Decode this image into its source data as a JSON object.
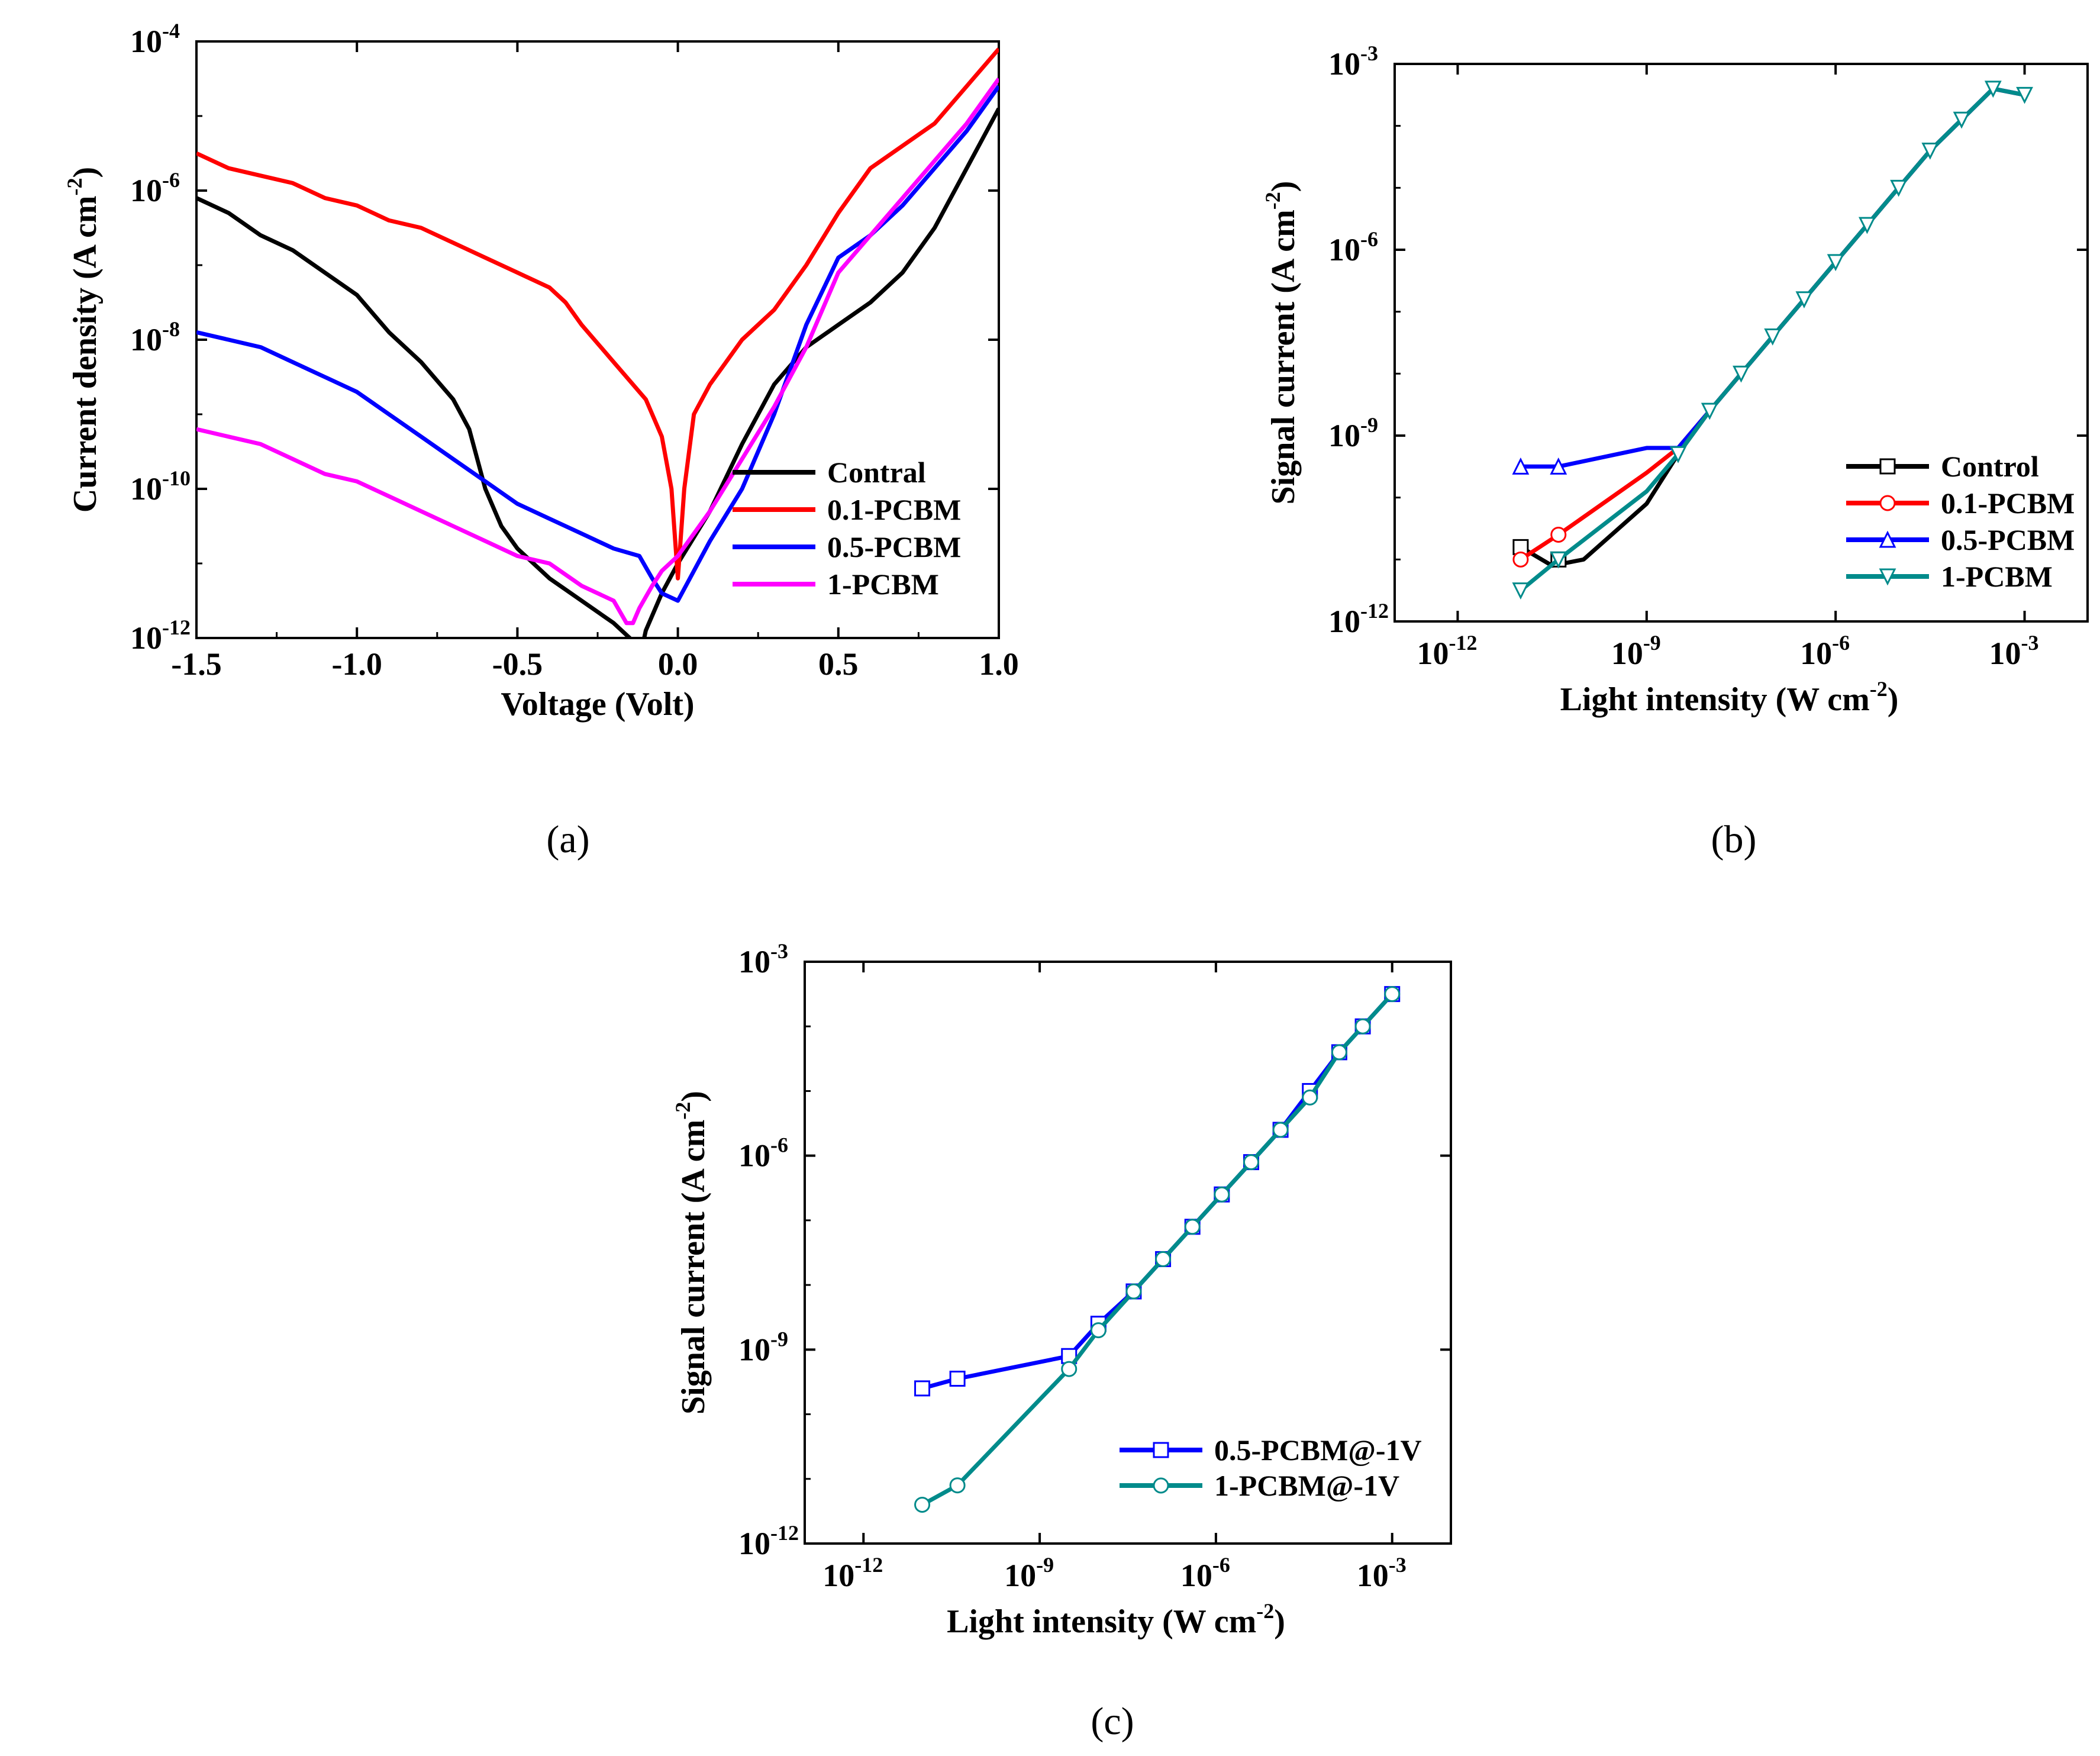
{
  "chart_data": [
    {
      "panel": "(a)",
      "panel_letter": "a",
      "type": "line",
      "xscale": "linear",
      "yscale": "log",
      "xlabel": "Voltage (Volt)",
      "ylabel": "Current density (A cm-2)",
      "ylabel_parts": {
        "text": "Current density (A cm",
        "sup": "-2",
        "close": ")"
      },
      "xlim": [
        -1.5,
        1.0
      ],
      "ylim_exp": [
        -12,
        -4
      ],
      "xticks": [
        -1.5,
        -1.0,
        -0.5,
        0.0,
        0.5,
        1.0
      ],
      "xtick_labels": [
        "-1.5",
        "-1.0",
        "-0.5",
        "0.0",
        "0.5",
        "1.0"
      ],
      "yticks_exp": [
        -12,
        -10,
        -8,
        -6,
        -4
      ],
      "ytick_labels": [
        "10",
        "10",
        "10",
        "10",
        "10"
      ],
      "ytick_exps": [
        "-12",
        "-10",
        "-8",
        "-6",
        "-4"
      ],
      "legend_position": "bottom-right",
      "series": [
        {
          "name": "Contral",
          "color": "#000000",
          "x": [
            -1.5,
            -1.4,
            -1.3,
            -1.2,
            -1.1,
            -1.0,
            -0.9,
            -0.8,
            -0.7,
            -0.65,
            -0.6,
            -0.55,
            -0.5,
            -0.4,
            -0.3,
            -0.2,
            -0.15,
            -0.12,
            -0.1,
            -0.05,
            0.0,
            0.1,
            0.2,
            0.3,
            0.4,
            0.5,
            0.6,
            0.7,
            0.8,
            0.9,
            1.0
          ],
          "y_log10": [
            -6.1,
            -6.3,
            -6.6,
            -6.8,
            -7.1,
            -7.4,
            -7.9,
            -8.3,
            -8.8,
            -9.2,
            -10.0,
            -10.5,
            -10.8,
            -11.2,
            -11.5,
            -11.8,
            -12.0,
            -12.3,
            -11.9,
            -11.4,
            -11.0,
            -10.3,
            -9.4,
            -8.6,
            -8.1,
            -7.8,
            -7.5,
            -7.1,
            -6.5,
            -5.7,
            -4.9
          ]
        },
        {
          "name": "0.1-PCBM",
          "color": "#ff0000",
          "x": [
            -1.5,
            -1.4,
            -1.3,
            -1.2,
            -1.1,
            -1.0,
            -0.9,
            -0.8,
            -0.7,
            -0.6,
            -0.5,
            -0.4,
            -0.35,
            -0.3,
            -0.2,
            -0.1,
            -0.05,
            -0.02,
            0.0,
            0.02,
            0.05,
            0.1,
            0.15,
            0.2,
            0.3,
            0.4,
            0.5,
            0.6,
            0.7,
            0.8,
            0.9,
            1.0
          ],
          "y_log10": [
            -5.5,
            -5.7,
            -5.8,
            -5.9,
            -6.1,
            -6.2,
            -6.4,
            -6.5,
            -6.7,
            -6.9,
            -7.1,
            -7.3,
            -7.5,
            -7.8,
            -8.3,
            -8.8,
            -9.3,
            -10.0,
            -11.2,
            -10.0,
            -9.0,
            -8.6,
            -8.3,
            -8.0,
            -7.6,
            -7.0,
            -6.3,
            -5.7,
            -5.4,
            -5.1,
            -4.6,
            -4.1
          ]
        },
        {
          "name": "0.5-PCBM",
          "color": "#0000ff",
          "x": [
            -1.5,
            -1.4,
            -1.3,
            -1.2,
            -1.1,
            -1.0,
            -0.9,
            -0.8,
            -0.7,
            -0.6,
            -0.5,
            -0.4,
            -0.3,
            -0.2,
            -0.12,
            -0.08,
            -0.05,
            0.0,
            0.05,
            0.1,
            0.2,
            0.3,
            0.4,
            0.5,
            0.6,
            0.7,
            0.8,
            0.9,
            1.0
          ],
          "y_log10": [
            -7.9,
            -8.0,
            -8.1,
            -8.3,
            -8.5,
            -8.7,
            -9.0,
            -9.3,
            -9.6,
            -9.9,
            -10.2,
            -10.4,
            -10.6,
            -10.8,
            -10.9,
            -11.2,
            -11.4,
            -11.5,
            -11.1,
            -10.7,
            -10.0,
            -9.0,
            -7.8,
            -6.9,
            -6.6,
            -6.2,
            -5.7,
            -5.2,
            -4.6
          ]
        },
        {
          "name": "1-PCBM",
          "color": "#ff00ff",
          "x": [
            -1.5,
            -1.4,
            -1.3,
            -1.2,
            -1.1,
            -1.0,
            -0.9,
            -0.8,
            -0.7,
            -0.6,
            -0.5,
            -0.4,
            -0.3,
            -0.2,
            -0.16,
            -0.14,
            -0.12,
            -0.08,
            -0.05,
            0.0,
            0.1,
            0.2,
            0.3,
            0.4,
            0.5,
            0.6,
            0.7,
            0.8,
            0.9,
            1.0
          ],
          "y_log10": [
            -9.2,
            -9.3,
            -9.4,
            -9.6,
            -9.8,
            -9.9,
            -10.1,
            -10.3,
            -10.5,
            -10.7,
            -10.9,
            -11.0,
            -11.3,
            -11.5,
            -11.8,
            -11.8,
            -11.6,
            -11.3,
            -11.1,
            -10.9,
            -10.3,
            -9.6,
            -8.9,
            -8.1,
            -7.1,
            -6.6,
            -6.1,
            -5.6,
            -5.1,
            -4.5
          ]
        }
      ]
    },
    {
      "panel": "(b)",
      "panel_letter": "b",
      "type": "line",
      "xscale": "log",
      "yscale": "log",
      "xlabel": "Light intensity (W cm-2)",
      "xlabel_parts": {
        "text": "Light intensity (W cm",
        "sup": "-2",
        "close": ")"
      },
      "ylabel": "Signal current (A cm-2)",
      "ylabel_parts": {
        "text": "Signal current (A cm",
        "sup": "-2",
        "close": ")"
      },
      "xlim_exp": [
        -13,
        -2
      ],
      "ylim_exp": [
        -12,
        -3
      ],
      "xticks_exp": [
        -12,
        -9,
        -6,
        -3
      ],
      "xtick_labels": [
        "10",
        "10",
        "10",
        "10"
      ],
      "xtick_exps": [
        "-12",
        "-9",
        "-6",
        "-3"
      ],
      "yticks_exp": [
        -12,
        -9,
        -6,
        -3
      ],
      "ytick_labels": [
        "10",
        "10",
        "10",
        "10"
      ],
      "ytick_exps": [
        "-12",
        "-9",
        "-6",
        "-3"
      ],
      "legend_position": "bottom-right",
      "series": [
        {
          "name": "Control",
          "color": "#000000",
          "marker": "square",
          "x_log10": [
            -11.0,
            -10.5,
            -10.0,
            -9.0,
            -8.5,
            -8.0,
            -7.5,
            -7.0,
            -6.5,
            -6.0,
            -5.5,
            -5.0,
            -4.5,
            -4.0,
            -3.5,
            -3.0
          ],
          "y_log10": [
            -10.8,
            -11.1,
            -11.0,
            -10.1,
            -9.3,
            -8.6,
            -8.0,
            -7.4,
            -6.8,
            -6.2,
            -5.6,
            -5.0,
            -4.4,
            -3.9,
            -3.4,
            -3.5
          ],
          "marker_x_log10": [
            -11.0,
            -10.4
          ],
          "marker_y_log10": [
            -10.8,
            -11.0
          ]
        },
        {
          "name": "0.1-PCBM",
          "color": "#ff0000",
          "marker": "circle",
          "x_log10": [
            -11.0,
            -10.4,
            -9.0,
            -8.5,
            -8.0,
            -7.5,
            -7.0,
            -6.5,
            -6.0,
            -5.5,
            -5.0,
            -4.5,
            -4.0,
            -3.5,
            -3.0
          ],
          "y_log10": [
            -11.0,
            -10.6,
            -9.6,
            -9.2,
            -8.6,
            -8.0,
            -7.4,
            -6.8,
            -6.2,
            -5.6,
            -5.0,
            -4.4,
            -3.9,
            -3.4,
            -3.5
          ],
          "marker_x_log10": [
            -11.0,
            -10.4
          ],
          "marker_y_log10": [
            -11.0,
            -10.6
          ]
        },
        {
          "name": "0.5-PCBM",
          "color": "#0000ff",
          "marker": "triangle-up",
          "x_log10": [
            -11.0,
            -10.4,
            -9.0,
            -8.5,
            -8.0,
            -7.5,
            -7.0,
            -6.5,
            -6.0,
            -5.5,
            -5.0,
            -4.5,
            -4.0,
            -3.5,
            -3.0
          ],
          "y_log10": [
            -9.5,
            -9.5,
            -9.2,
            -9.2,
            -8.6,
            -8.0,
            -7.4,
            -6.8,
            -6.2,
            -5.6,
            -5.0,
            -4.4,
            -3.9,
            -3.4,
            -3.5
          ],
          "marker_x_log10": [
            -11.0,
            -10.4
          ],
          "marker_y_log10": [
            -9.5,
            -9.5
          ]
        },
        {
          "name": "1-PCBM",
          "color": "#008b8b",
          "marker": "triangle-down",
          "x_log10": [
            -11.0,
            -10.4,
            -9.0,
            -8.5,
            -8.0,
            -7.5,
            -7.0,
            -6.5,
            -6.0,
            -5.5,
            -5.0,
            -4.5,
            -4.0,
            -3.5,
            -3.0
          ],
          "y_log10": [
            -11.5,
            -11.0,
            -9.9,
            -9.3,
            -8.6,
            -8.0,
            -7.4,
            -6.8,
            -6.2,
            -5.6,
            -5.0,
            -4.4,
            -3.9,
            -3.4,
            -3.5
          ],
          "marker_x_log10": [
            -11.0,
            -10.4,
            -8.5,
            -8.0,
            -7.5,
            -7.0,
            -6.5,
            -6.0,
            -5.5,
            -5.0,
            -4.5,
            -4.0,
            -3.5,
            -3.0
          ],
          "marker_y_log10": [
            -11.5,
            -11.0,
            -9.3,
            -8.6,
            -8.0,
            -7.4,
            -6.8,
            -6.2,
            -5.6,
            -5.0,
            -4.4,
            -3.9,
            -3.4,
            -3.5
          ]
        }
      ]
    },
    {
      "panel": "(c)",
      "panel_letter": "c",
      "type": "line",
      "xscale": "log",
      "yscale": "log",
      "xlabel": "Light intensity (W cm-2)",
      "xlabel_parts": {
        "text": "Light intensity (W cm",
        "sup": "-2",
        "close": ")"
      },
      "ylabel": "Signal current (A cm-2)",
      "ylabel_parts": {
        "text": "Signal current (A cm",
        "sup": "-2",
        "close": ")"
      },
      "xlim_exp": [
        -13,
        -2
      ],
      "ylim_exp": [
        -12,
        -3
      ],
      "xticks_exp": [
        -12,
        -9,
        -6,
        -3
      ],
      "xtick_labels": [
        "10",
        "10",
        "10",
        "10"
      ],
      "xtick_exps": [
        "-12",
        "-9",
        "-6",
        "-3"
      ],
      "yticks_exp": [
        -12,
        -9,
        -6,
        -3
      ],
      "ytick_labels": [
        "10",
        "10",
        "10",
        "10"
      ],
      "ytick_exps": [
        "-12",
        "-9",
        "-6",
        "-3"
      ],
      "legend_position": "bottom-right",
      "series": [
        {
          "name": "0.5-PCBM@-1V",
          "color": "#0000ff",
          "marker": "square",
          "x_log10": [
            -11.0,
            -10.4,
            -8.5,
            -8.0,
            -7.4,
            -6.9,
            -6.4,
            -5.9,
            -5.4,
            -4.9,
            -4.4,
            -3.9,
            -3.5,
            -3.0
          ],
          "y_log10": [
            -9.6,
            -9.45,
            -9.1,
            -8.6,
            -8.1,
            -7.6,
            -7.1,
            -6.6,
            -6.1,
            -5.6,
            -5.0,
            -4.4,
            -4.0,
            -3.5
          ]
        },
        {
          "name": "1-PCBM@-1V",
          "color": "#008b8b",
          "marker": "circle",
          "x_log10": [
            -11.0,
            -10.4,
            -8.5,
            -8.0,
            -7.4,
            -6.9,
            -6.4,
            -5.9,
            -5.4,
            -4.9,
            -4.4,
            -3.9,
            -3.5,
            -3.0
          ],
          "y_log10": [
            -11.4,
            -11.1,
            -9.3,
            -8.7,
            -8.1,
            -7.6,
            -7.1,
            -6.6,
            -6.1,
            -5.6,
            -5.1,
            -4.4,
            -4.0,
            -3.5
          ]
        }
      ]
    }
  ]
}
